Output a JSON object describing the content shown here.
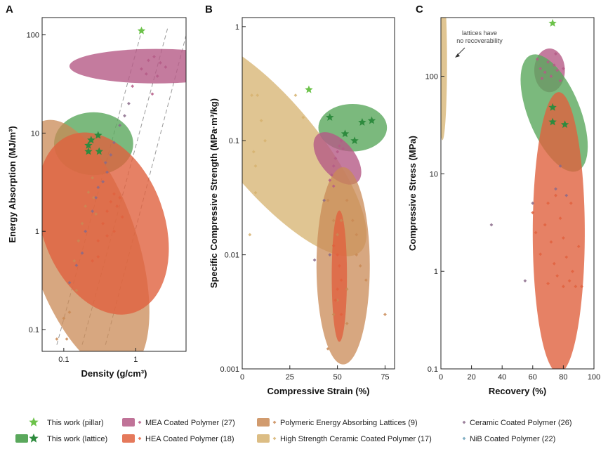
{
  "colors": {
    "pillar": "#6cc24a",
    "lattice_fill": "#5aa85c",
    "lattice_star": "#2e8b3e",
    "mea": "#b55a86",
    "hea": "#e0623e",
    "polymeric": "#c98a55",
    "high_strength": "#d6b26e",
    "ceramic": "#8a6a8a",
    "nib": "#6aa0b8"
  },
  "legend": [
    {
      "label": "This work (pillar)",
      "key": "pillar"
    },
    {
      "label": "This work (lattice)",
      "key": "lattice"
    },
    {
      "label": "MEA Coated Polymer (27)",
      "key": "mea"
    },
    {
      "label": "HEA Coated Polymer (18)",
      "key": "hea"
    },
    {
      "label": "Polymeric Energy Absorbing Lattices (9)",
      "key": "polymeric"
    },
    {
      "label": "High Strength Ceramic Coated Polymer (17)",
      "key": "high_strength"
    },
    {
      "label": "Ceramic Coated Polymer (26)",
      "key": "ceramic"
    },
    {
      "label": "NiB Coated Polymer (22)",
      "key": "nib"
    }
  ],
  "chart_data": [
    {
      "panel": "A",
      "type": "scatter",
      "xlabel": "Density (g/cm³)",
      "ylabel": "Energy Absorption (MJ/m³)",
      "xscale": "log",
      "yscale": "log",
      "xlim": [
        0.05,
        5
      ],
      "ylim": [
        0.06,
        150
      ],
      "yticks": [
        {
          "v": 0.1,
          "label": "0.1"
        },
        {
          "v": 1,
          "label": "1"
        },
        {
          "v": 10,
          "label": "10"
        },
        {
          "v": 100,
          "label": "100"
        }
      ],
      "xticks": [
        {
          "v": 0.1,
          "label": "0.1"
        },
        {
          "v": 1,
          "label": "1"
        }
      ],
      "reference_lines": [
        {
          "x1": 0.08,
          "y1": 0.07,
          "x2": 1.25,
          "y2": 120
        },
        {
          "x1": 0.18,
          "y1": 0.07,
          "x2": 2.8,
          "y2": 120
        },
        {
          "x1": 0.38,
          "y1": 0.07,
          "x2": 5.2,
          "y2": 110
        }
      ],
      "pillar": [
        [
          1.2,
          110
        ]
      ],
      "lattice": [
        [
          0.22,
          7.5
        ],
        [
          0.24,
          8.5
        ],
        [
          0.3,
          9.5
        ],
        [
          0.22,
          6.5
        ],
        [
          0.31,
          6.5
        ]
      ],
      "regions": [
        {
          "key": "lattice",
          "cx": 0.26,
          "cy": 7.8,
          "rx": 0.055,
          "ry": 0.1,
          "angle": 0
        },
        {
          "key": "mea",
          "cx": 1.9,
          "cy": 48,
          "rx": 0.12,
          "ry": 0.055,
          "angle": 0
        },
        {
          "key": "polymeric",
          "cx": 0.19,
          "cy": 0.7,
          "rx": 0.075,
          "ry": 0.42,
          "angle": -18
        },
        {
          "key": "hea",
          "cx": 0.35,
          "cy": 1.2,
          "rx": 0.085,
          "ry": 0.3,
          "angle": -20
        }
      ],
      "points": {
        "mea": [
          [
            1.2,
            45
          ],
          [
            1.5,
            55
          ],
          [
            1.8,
            60
          ],
          [
            2.2,
            52
          ],
          [
            2.6,
            47
          ],
          [
            1.4,
            40
          ],
          [
            2.0,
            38
          ],
          [
            0.9,
            30
          ],
          [
            1.7,
            25
          ]
        ],
        "polymeric": [
          [
            0.08,
            0.08
          ],
          [
            0.1,
            0.13
          ],
          [
            0.12,
            0.3
          ],
          [
            0.14,
            0.5
          ],
          [
            0.16,
            0.8
          ],
          [
            0.18,
            1.2
          ],
          [
            0.2,
            1.8
          ],
          [
            0.22,
            2.5
          ],
          [
            0.25,
            3.5
          ],
          [
            0.15,
            0.25
          ],
          [
            0.12,
            0.15
          ],
          [
            0.11,
            0.08
          ],
          [
            0.26,
            2.2
          ],
          [
            0.28,
            1.5
          ]
        ],
        "hea": [
          [
            0.25,
            0.5
          ],
          [
            0.3,
            0.8
          ],
          [
            0.35,
            1.2
          ],
          [
            0.4,
            1.6
          ],
          [
            0.45,
            2.0
          ],
          [
            0.5,
            2.4
          ],
          [
            0.55,
            1.8
          ],
          [
            0.6,
            2.2
          ],
          [
            0.4,
            0.9
          ],
          [
            0.3,
            0.55
          ],
          [
            0.65,
            1.4
          ],
          [
            0.5,
            1.0
          ]
        ],
        "ceramic": [
          [
            0.7,
            15
          ],
          [
            0.8,
            20
          ],
          [
            0.6,
            12
          ],
          [
            0.5,
            8
          ],
          [
            0.45,
            6
          ],
          [
            0.4,
            4
          ],
          [
            0.35,
            3.2
          ],
          [
            0.3,
            2.8
          ],
          [
            0.28,
            2.2
          ],
          [
            0.25,
            1.6
          ],
          [
            0.2,
            1.0
          ],
          [
            0.18,
            0.6
          ],
          [
            0.15,
            0.45
          ],
          [
            0.12,
            0.3
          ],
          [
            0.38,
            5
          ]
        ]
      }
    },
    {
      "panel": "B",
      "type": "scatter",
      "xlabel": "Compressive Strain (%)",
      "ylabel": "Specific Compressive Strength (MPa·m³/kg)",
      "xscale": "linear",
      "yscale": "log",
      "xlim": [
        0,
        80
      ],
      "ylim": [
        0.001,
        1.2
      ],
      "yticks": [
        {
          "v": 0.001,
          "label": "0.001"
        },
        {
          "v": 0.01,
          "label": "0.01"
        },
        {
          "v": 0.1,
          "label": "0.1"
        },
        {
          "v": 1,
          "label": "1"
        }
      ],
      "xticks": [
        {
          "v": 0,
          "label": "0"
        },
        {
          "v": 25,
          "label": "25"
        },
        {
          "v": 50,
          "label": "50"
        },
        {
          "v": 75,
          "label": "75"
        }
      ],
      "pillar": [
        [
          35,
          0.28
        ]
      ],
      "lattice": [
        [
          46,
          0.16
        ],
        [
          54,
          0.115
        ],
        [
          59,
          0.1
        ],
        [
          63,
          0.145
        ],
        [
          68,
          0.15
        ]
      ],
      "regions": [
        {
          "key": "high_strength",
          "cx": 15,
          "cy": 0.09,
          "rx": 48,
          "ry": 0.38,
          "angle": -40
        },
        {
          "key": "lattice",
          "cx": 58,
          "cy": 0.13,
          "rx": 36,
          "ry": 0.065,
          "angle": 0
        },
        {
          "key": "mea",
          "cx": 50,
          "cy": 0.07,
          "rx": 18,
          "ry": 0.085,
          "angle": -40
        },
        {
          "key": "polymeric",
          "cx": 53,
          "cy": 0.008,
          "rx": 28,
          "ry": 0.27,
          "angle": 0
        },
        {
          "key": "hea",
          "cx": 51,
          "cy": 0.0065,
          "rx": 8,
          "ry": 0.18,
          "angle": 0
        }
      ],
      "points": {
        "high_strength": [
          [
            5,
            0.25
          ],
          [
            8,
            0.25
          ],
          [
            10,
            0.15
          ],
          [
            12,
            0.1
          ],
          [
            6,
            0.08
          ],
          [
            7,
            0.06
          ],
          [
            7,
            0.035
          ],
          [
            4,
            0.015
          ],
          [
            28,
            0.25
          ],
          [
            32,
            0.16
          ]
        ],
        "mea": [
          [
            46,
            0.045
          ],
          [
            47,
            0.05
          ],
          [
            48,
            0.06
          ],
          [
            49,
            0.07
          ],
          [
            50,
            0.08
          ],
          [
            51,
            0.09
          ],
          [
            52,
            0.1
          ],
          [
            53,
            0.085
          ],
          [
            48,
            0.04
          ]
        ],
        "polymeric": [
          [
            45,
            0.03
          ],
          [
            48,
            0.02
          ],
          [
            50,
            0.015
          ],
          [
            52,
            0.02
          ],
          [
            55,
            0.03
          ],
          [
            58,
            0.02
          ],
          [
            60,
            0.01
          ],
          [
            62,
            0.008
          ],
          [
            65,
            0.006
          ],
          [
            55,
            0.005
          ],
          [
            50,
            0.004
          ],
          [
            48,
            0.003
          ],
          [
            45,
            0.0015
          ],
          [
            55,
            0.0025
          ],
          [
            75,
            0.003
          ],
          [
            60,
            0.015
          ]
        ],
        "hea": [
          [
            48,
            0.012
          ],
          [
            50,
            0.01
          ],
          [
            51,
            0.008
          ],
          [
            52,
            0.006
          ],
          [
            50,
            0.005
          ],
          [
            49,
            0.004
          ],
          [
            52,
            0.003
          ]
        ],
        "ceramic": [
          [
            38,
            0.009
          ],
          [
            46,
            0.01
          ],
          [
            43,
            0.03
          ]
        ]
      }
    },
    {
      "panel": "C",
      "type": "scatter",
      "xlabel": "Recovery (%)",
      "ylabel": "Compressive Stress (MPa)",
      "xscale": "linear",
      "yscale": "log",
      "xlim": [
        0,
        100
      ],
      "ylim": [
        0.1,
        400
      ],
      "yticks": [
        {
          "v": 0.1,
          "label": "0.1"
        },
        {
          "v": 1,
          "label": "1"
        },
        {
          "v": 10,
          "label": "10"
        },
        {
          "v": 100,
          "label": "100"
        }
      ],
      "xticks": [
        {
          "v": 0,
          "label": "0"
        },
        {
          "v": 20,
          "label": "20"
        },
        {
          "v": 40,
          "label": "40"
        },
        {
          "v": 60,
          "label": "60"
        },
        {
          "v": 80,
          "label": "80"
        },
        {
          "v": 100,
          "label": "100"
        }
      ],
      "annotation": "lattices have\nno recoverability",
      "pillar": [
        [
          73,
          350
        ]
      ],
      "lattice": [
        [
          73,
          48
        ],
        [
          73,
          34
        ],
        [
          81,
          32
        ]
      ],
      "regions": [
        {
          "key": "high_strength",
          "cx": 1,
          "cy": 140,
          "rx": 6,
          "ry": 0.25,
          "angle": 0
        },
        {
          "key": "mea",
          "cx": 71,
          "cy": 115,
          "rx": 20,
          "ry": 0.07,
          "angle": 0
        },
        {
          "key": "lattice",
          "cx": 74,
          "cy": 42,
          "rx": 34,
          "ry": 0.2,
          "angle": -22
        },
        {
          "key": "hea",
          "cx": 77,
          "cy": 2.5,
          "rx": 34,
          "ry": 0.45,
          "angle": 0
        }
      ],
      "points": {
        "mea": [
          [
            63,
            150
          ],
          [
            65,
            120
          ],
          [
            68,
            110
          ],
          [
            70,
            140
          ],
          [
            72,
            100
          ],
          [
            74,
            130
          ],
          [
            76,
            115
          ],
          [
            78,
            90
          ],
          [
            80,
            120
          ],
          [
            66,
            95
          ],
          [
            75,
            170
          ]
        ],
        "hea": [
          [
            60,
            4
          ],
          [
            62,
            2.5
          ],
          [
            65,
            1.5
          ],
          [
            68,
            3
          ],
          [
            70,
            5
          ],
          [
            72,
            2
          ],
          [
            74,
            1.2
          ],
          [
            76,
            0.9
          ],
          [
            78,
            3.5
          ],
          [
            80,
            2.2
          ],
          [
            82,
            1.4
          ],
          [
            84,
            0.8
          ],
          [
            86,
            1
          ],
          [
            88,
            0.7
          ],
          [
            90,
            1.8
          ],
          [
            92,
            0.7
          ],
          [
            85,
            5
          ],
          [
            75,
            6
          ],
          [
            70,
            0.75
          ],
          [
            80,
            0.7
          ]
        ],
        "ceramic": [
          [
            33,
            3
          ],
          [
            55,
            0.8
          ],
          [
            60,
            5
          ],
          [
            75,
            7
          ],
          [
            78,
            12
          ],
          [
            82,
            6
          ]
        ]
      }
    }
  ]
}
